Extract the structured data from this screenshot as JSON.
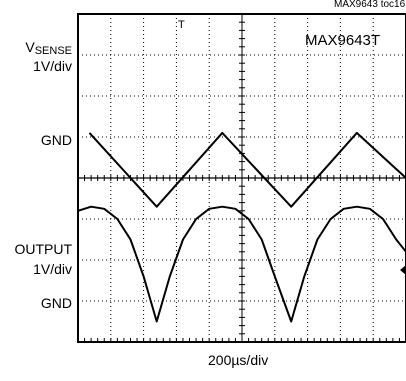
{
  "header": {
    "toc": "MAX9643 toc16"
  },
  "scope": {
    "part": "MAX9643T",
    "time_scale": "200µs/div",
    "trigger_marker": "T"
  },
  "channels": {
    "vsense": {
      "label_main": "V",
      "label_sub": "SENSE",
      "scale": "1V/div",
      "ground": "GND"
    },
    "output": {
      "label": "OUTPUT",
      "scale": "1V/div",
      "ground": "GND"
    }
  },
  "chart_data": {
    "type": "line",
    "title": "",
    "xlabel": "200µs/div",
    "x_divisions": 10,
    "y_divisions": 8,
    "xlim_div": [
      0,
      10
    ],
    "series": [
      {
        "name": "VSENSE",
        "units": "div (1V/div)",
        "ground_div": 1.0,
        "x_div": [
          0.35,
          2.4,
          4.4,
          6.5,
          8.5,
          10.0
        ],
        "y_div": [
          2.1,
          0.3,
          2.1,
          0.3,
          2.1,
          1.0
        ]
      },
      {
        "name": "OUTPUT",
        "units": "div (1V/div)",
        "ground_div": 0.0,
        "x_div": [
          0.0,
          0.4,
          0.8,
          1.2,
          1.6,
          2.0,
          2.4,
          2.8,
          3.2,
          3.6,
          4.0,
          4.4,
          4.8,
          5.2,
          5.6,
          6.0,
          6.5,
          6.9,
          7.3,
          7.7,
          8.1,
          8.5,
          8.9,
          9.3,
          9.7,
          10.0
        ],
        "y_div": [
          2.7,
          2.8,
          2.75,
          2.5,
          2.0,
          1.1,
          0.0,
          1.1,
          2.0,
          2.5,
          2.75,
          2.8,
          2.75,
          2.5,
          2.0,
          1.1,
          0.0,
          1.1,
          2.0,
          2.5,
          2.75,
          2.8,
          2.75,
          2.5,
          2.0,
          1.7
        ]
      }
    ]
  }
}
